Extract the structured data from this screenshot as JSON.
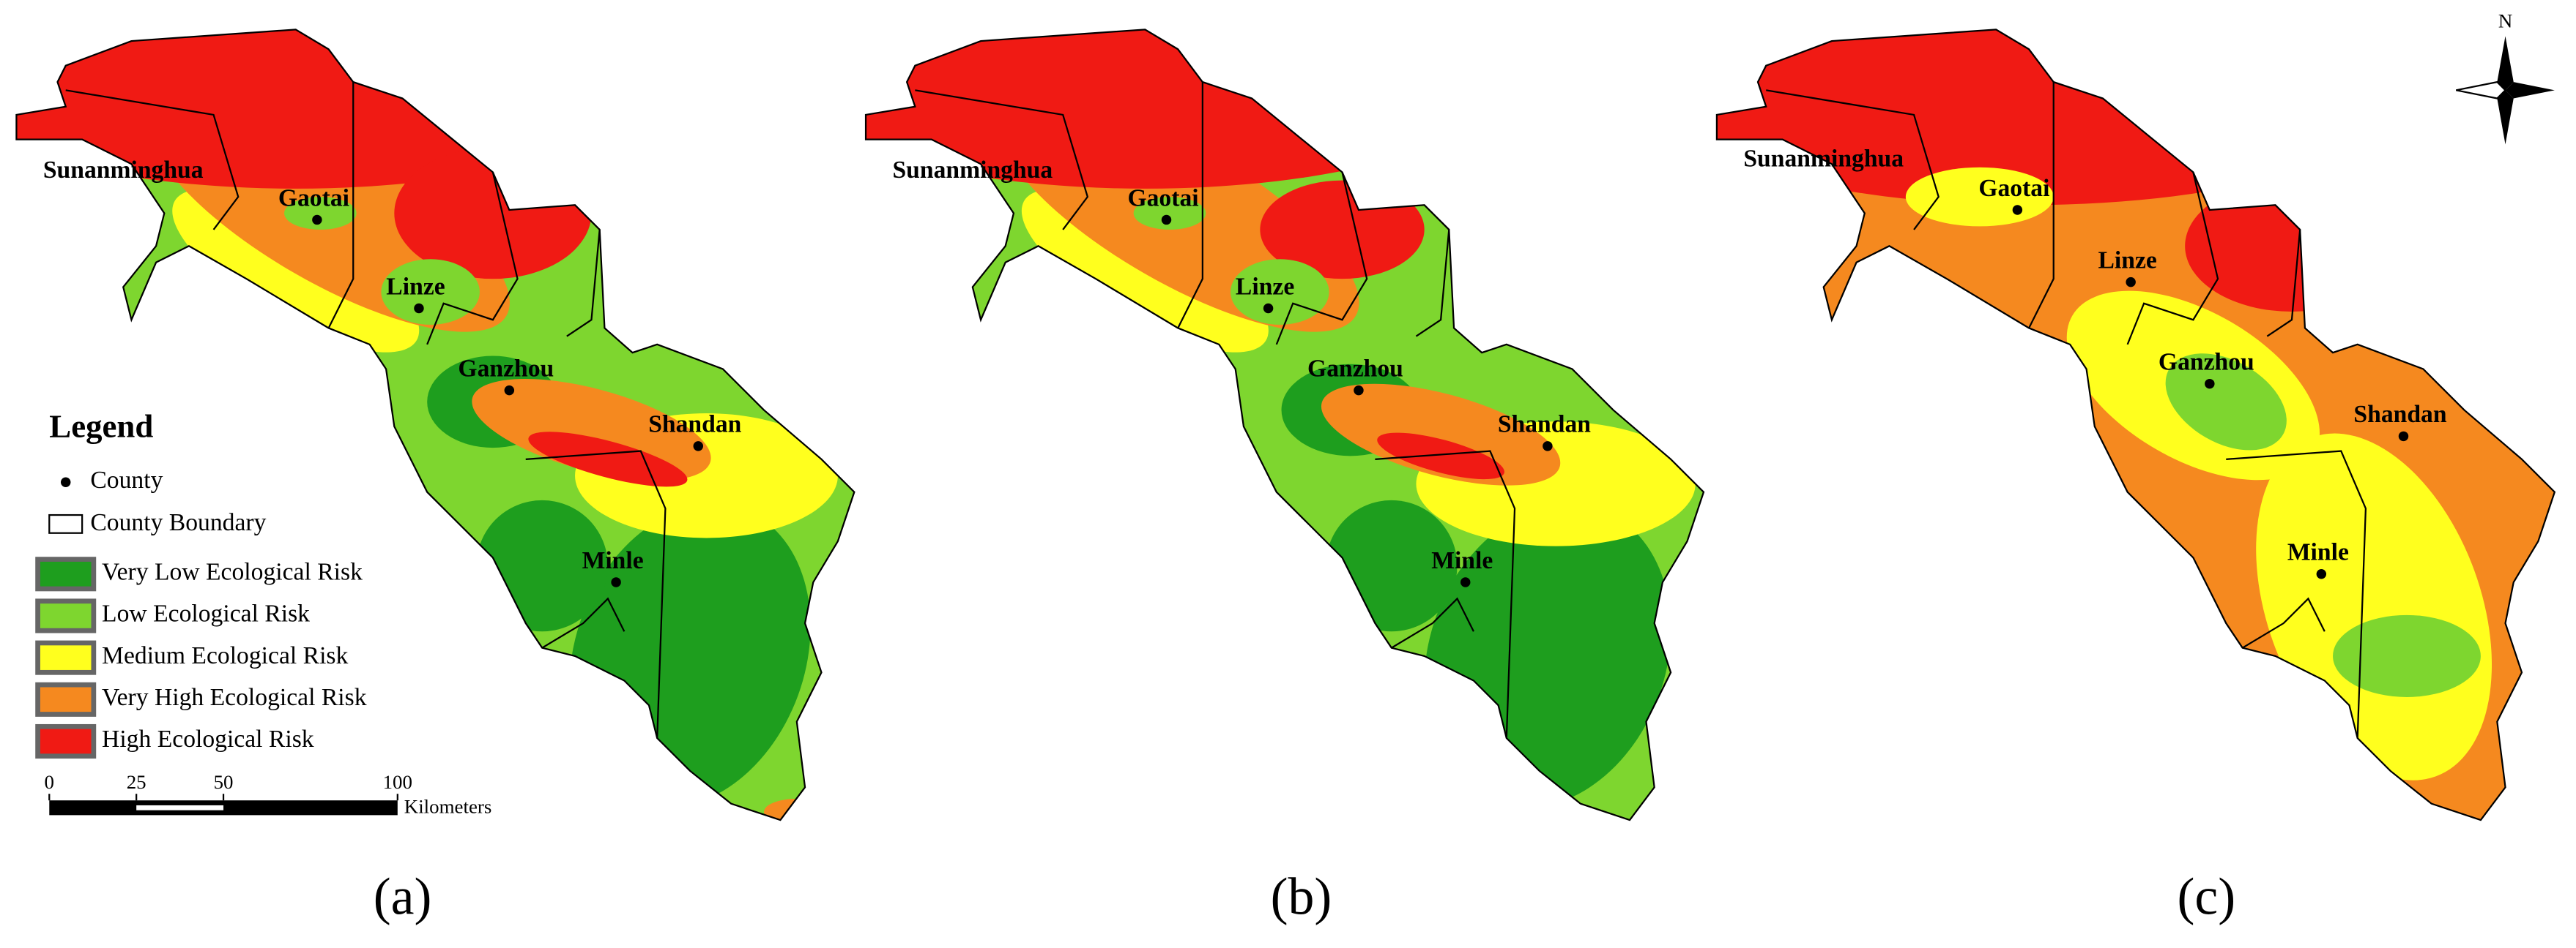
{
  "panels": [
    {
      "label": "(a)",
      "counties": [
        "Sunanminghua",
        "Gaotai",
        "Linze",
        "Ganzhou",
        "Shandan",
        "Minle"
      ]
    },
    {
      "label": "(b)",
      "counties": [
        "Sunanminghua",
        "Gaotai",
        "Linze",
        "Ganzhou",
        "Shandan",
        "Minle"
      ]
    },
    {
      "label": "(c)",
      "counties": [
        "Sunanminghua",
        "Gaotai",
        "Linze",
        "Ganzhou",
        "Shandan",
        "Minle"
      ]
    }
  ],
  "legend": {
    "title": "Legend",
    "county": "County",
    "boundary": "County Boundary",
    "classes": [
      {
        "name": "Very Low Ecological Risk",
        "color": "#1e9e1e"
      },
      {
        "name": "Low Ecological Risk",
        "color": "#7ed62f"
      },
      {
        "name": "Medium Ecological Risk",
        "color": "#ffff1e"
      },
      {
        "name": "Very High Ecological Risk",
        "color": "#f5891f"
      },
      {
        "name": "High Ecological Risk",
        "color": "#f01a14"
      }
    ]
  },
  "scale_bar": {
    "ticks": [
      0,
      25,
      50,
      100
    ],
    "unit": "Kilometers"
  },
  "north": "N"
}
